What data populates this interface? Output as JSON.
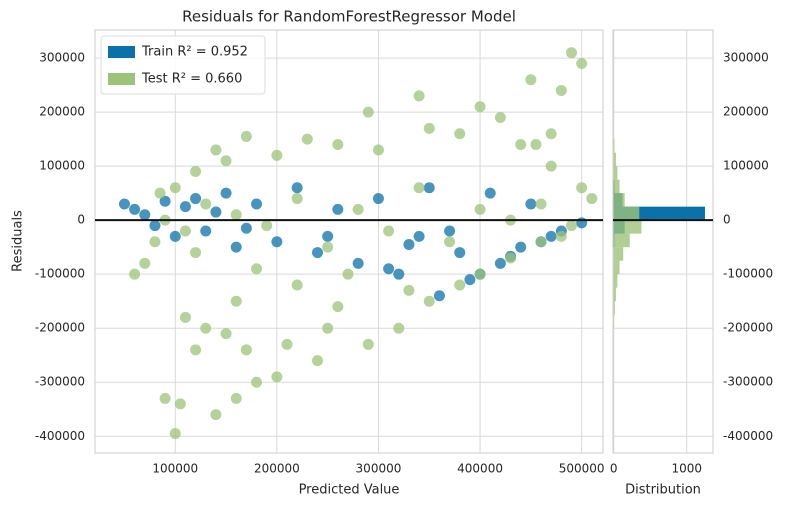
{
  "chart_data": [
    {
      "type": "scatter",
      "title": "Residuals for RandomForestRegressor Model",
      "xlabel": "Predicted Value",
      "ylabel": "Residuals",
      "xlim": [
        21000,
        521000
      ],
      "ylim": [
        -431000,
        352000
      ],
      "xticks": [
        100000,
        200000,
        300000,
        400000,
        500000
      ],
      "yticks": [
        -400000,
        -300000,
        -200000,
        -100000,
        0,
        100000,
        200000,
        300000
      ],
      "grid": true,
      "legend": "upper left",
      "reference_line": 0,
      "series": [
        {
          "name": "Train R² = 0.952",
          "color": "#0a72a8",
          "x": [
            50000,
            60000,
            70000,
            80000,
            90000,
            100000,
            120000,
            130000,
            150000,
            160000,
            180000,
            200000,
            220000,
            240000,
            260000,
            280000,
            300000,
            320000,
            340000,
            360000,
            380000,
            400000,
            420000,
            440000,
            460000,
            480000,
            500000,
            410000,
            450000,
            350000,
            390000,
            430000,
            470000,
            370000,
            250000,
            110000,
            140000,
            170000,
            310000,
            330000
          ],
          "values": [
            30000,
            20000,
            10000,
            -10000,
            35000,
            -30000,
            40000,
            -20000,
            50000,
            -50000,
            30000,
            -40000,
            60000,
            -60000,
            20000,
            -80000,
            40000,
            -100000,
            -30000,
            -140000,
            -60000,
            -100000,
            -80000,
            -50000,
            -40000,
            -20000,
            -5000,
            50000,
            30000,
            60000,
            -110000,
            -67000,
            -30000,
            -20000,
            -30000,
            25000,
            15000,
            -15000,
            -90000,
            -45000
          ]
        },
        {
          "name": "Test R² = 0.660",
          "color": "#9dc37a",
          "x": [
            100000,
            90000,
            105000,
            140000,
            160000,
            180000,
            200000,
            120000,
            110000,
            130000,
            150000,
            170000,
            210000,
            240000,
            250000,
            290000,
            320000,
            350000,
            380000,
            400000,
            430000,
            460000,
            490000,
            60000,
            70000,
            80000,
            85000,
            100000,
            120000,
            140000,
            150000,
            170000,
            200000,
            230000,
            260000,
            290000,
            300000,
            340000,
            350000,
            380000,
            400000,
            420000,
            440000,
            470000,
            480000,
            490000,
            500000,
            450000,
            455000,
            470000,
            500000,
            510000,
            90000,
            110000,
            130000,
            160000,
            190000,
            220000,
            250000,
            280000,
            310000,
            340000,
            370000,
            400000,
            430000,
            460000,
            480000,
            120000,
            180000,
            220000,
            270000,
            330000,
            160000,
            260000
          ],
          "values": [
            -395000,
            -330000,
            -340000,
            -360000,
            -330000,
            -300000,
            -290000,
            -240000,
            -180000,
            -200000,
            -210000,
            -240000,
            -230000,
            -260000,
            -200000,
            -230000,
            -200000,
            -150000,
            -120000,
            -100000,
            -70000,
            -40000,
            -10000,
            -100000,
            -80000,
            -40000,
            50000,
            60000,
            90000,
            130000,
            110000,
            155000,
            120000,
            150000,
            140000,
            200000,
            130000,
            230000,
            170000,
            160000,
            210000,
            190000,
            140000,
            160000,
            240000,
            310000,
            290000,
            260000,
            140000,
            100000,
            60000,
            40000,
            0,
            -20000,
            30000,
            10000,
            -10000,
            40000,
            -50000,
            20000,
            -20000,
            60000,
            -40000,
            20000,
            0,
            30000,
            -30000,
            -60000,
            -90000,
            -120000,
            -100000,
            -130000,
            -150000,
            -160000
          ]
        }
      ]
    },
    {
      "type": "histogram",
      "xlabel": "Distribution",
      "orientation": "horizontal",
      "xlim": [
        -10,
        1360
      ],
      "xticks": [
        0,
        1000
      ],
      "ylim": [
        -431000,
        352000
      ],
      "yticks": [
        -400000,
        -300000,
        -200000,
        -100000,
        0,
        100000,
        200000,
        300000
      ],
      "grid": true,
      "reference_line": 0,
      "bins": [
        -200000,
        -175000,
        -150000,
        -125000,
        -100000,
        -75000,
        -50000,
        -25000,
        0,
        25000,
        50000,
        75000,
        100000,
        125000,
        150000
      ],
      "series": [
        {
          "name": "Train",
          "color": "#0a72a8",
          "values": [
            0,
            0,
            0,
            0,
            0,
            0,
            10,
            150,
            1250,
            120,
            10,
            0,
            0,
            0
          ]
        },
        {
          "name": "Test",
          "color": "#9dc37a",
          "values": [
            5,
            15,
            30,
            50,
            80,
            130,
            220,
            380,
            350,
            150,
            80,
            50,
            30,
            10
          ]
        }
      ]
    }
  ]
}
